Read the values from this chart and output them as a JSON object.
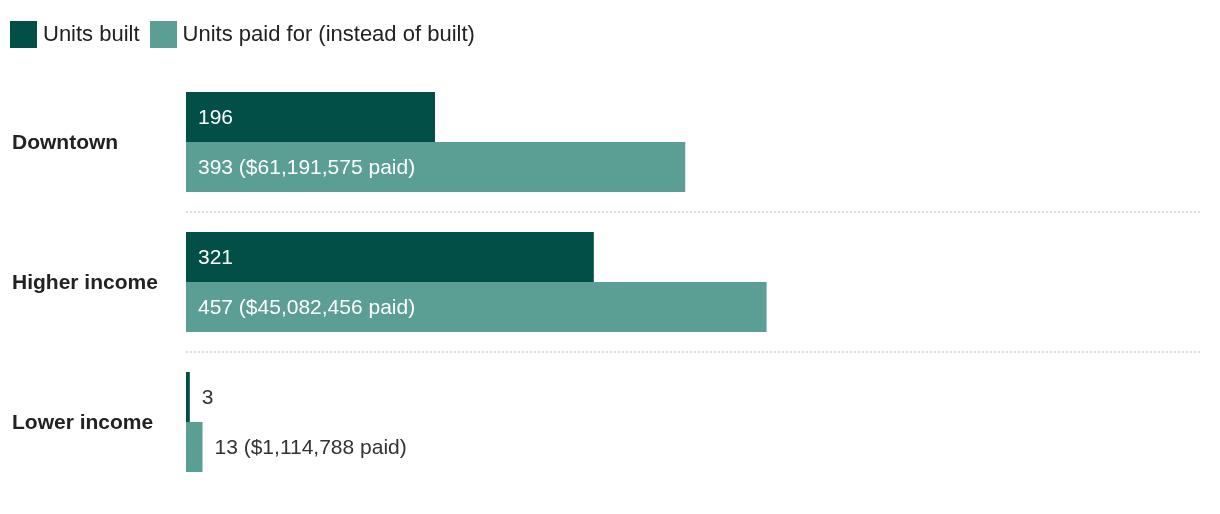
{
  "chart_data": {
    "type": "bar",
    "orientation": "horizontal",
    "categories": [
      "Downtown",
      "Higher income",
      "Lower income"
    ],
    "series": [
      {
        "name": "Units built",
        "color": "#024f47",
        "values": [
          196,
          321,
          3
        ],
        "value_labels": [
          "196",
          "321",
          "3"
        ]
      },
      {
        "name": "Units paid for (instead of built)",
        "color": "#5a9e94",
        "values": [
          393,
          457,
          13
        ],
        "value_labels": [
          "393 ($61,191,575 paid)",
          "457 ($45,082,456 paid)",
          "13 ($1,114,788 paid)"
        ]
      }
    ],
    "legend": "top left",
    "grid": "y"
  }
}
